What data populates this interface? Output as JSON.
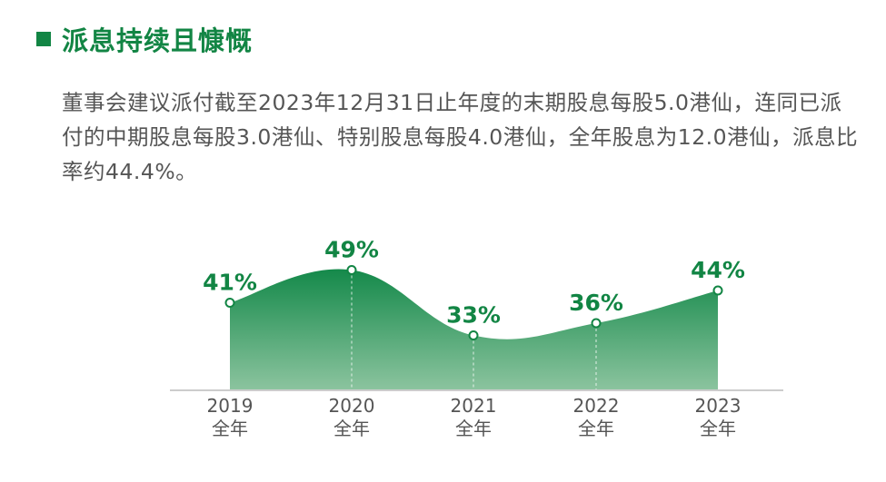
{
  "title": "派息持续且慷慨",
  "paragraph": "董事会建议派付截至2023年12月31日止年度的末期股息每股5.0港仙，连同已派付的中期股息每股3.0港仙、特别股息每股4.0港仙，全年股息为12.0港仙，派息比率约44.4%。",
  "colors": {
    "accent": "#128544",
    "area_top": "#14894a",
    "area_bottom": "#8cc49f",
    "axis": "#cccccc",
    "text": "#555555"
  },
  "chart_data": {
    "type": "area",
    "categories": [
      {
        "year": "2019",
        "period": "全年"
      },
      {
        "year": "2020",
        "period": "全年"
      },
      {
        "year": "2021",
        "period": "全年"
      },
      {
        "year": "2022",
        "period": "全年"
      },
      {
        "year": "2023",
        "period": "全年"
      }
    ],
    "values": [
      41,
      49,
      33,
      36,
      44
    ],
    "labels": [
      "41%",
      "49%",
      "33%",
      "36%",
      "44%"
    ],
    "unit": "%",
    "grid": false,
    "legend": "none"
  }
}
